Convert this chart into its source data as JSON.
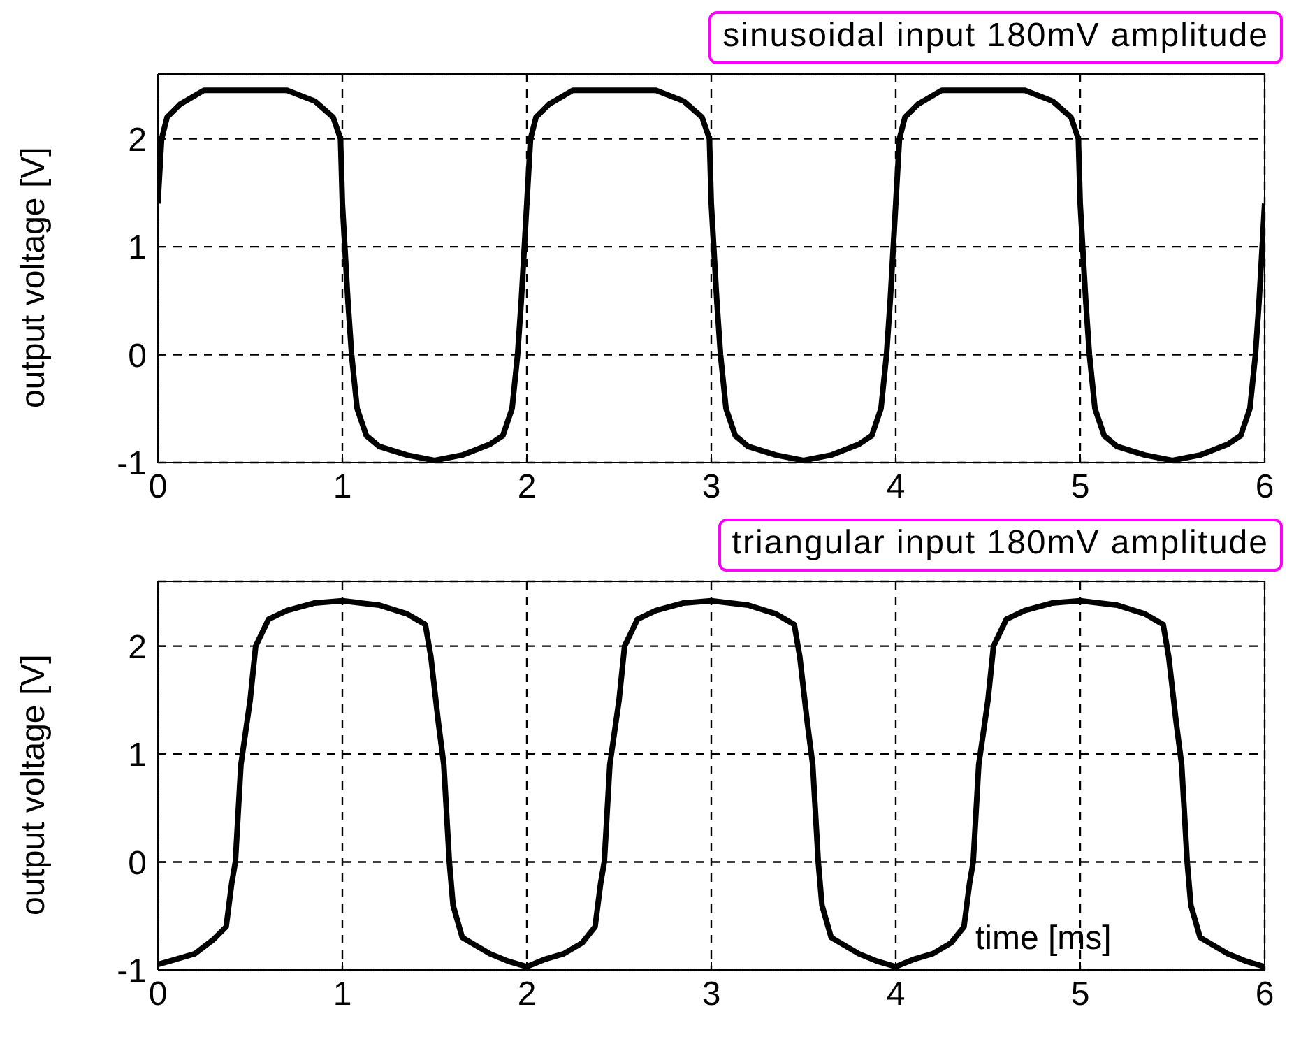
{
  "chart_data": [
    {
      "type": "line",
      "title": "sinusoidal input 180mV amplitude",
      "ylabel": "output voltage [V]",
      "x": [
        0,
        0.02,
        0.05,
        0.12,
        0.25,
        0.7,
        0.85,
        0.95,
        0.99,
        1.0,
        1.03,
        1.05,
        1.08,
        1.13,
        1.2,
        1.35,
        1.5,
        1.65,
        1.8,
        1.87,
        1.92,
        1.95,
        1.97,
        2.0,
        2.02,
        2.05,
        2.12,
        2.25,
        2.7,
        2.85,
        2.95,
        2.99,
        3.0,
        3.03,
        3.05,
        3.08,
        3.13,
        3.2,
        3.35,
        3.5,
        3.65,
        3.8,
        3.87,
        3.92,
        3.95,
        3.97,
        4.0,
        4.02,
        4.05,
        4.12,
        4.25,
        4.7,
        4.85,
        4.95,
        4.99,
        5.0,
        5.03,
        5.05,
        5.08,
        5.13,
        5.2,
        5.35,
        5.5,
        5.65,
        5.8,
        5.87,
        5.92,
        5.95,
        5.97,
        6.0
      ],
      "series": [
        {
          "color": "#000000",
          "values": [
            1.4,
            2.0,
            2.2,
            2.32,
            2.45,
            2.45,
            2.35,
            2.2,
            2.0,
            1.4,
            0.5,
            0,
            -0.5,
            -0.75,
            -0.85,
            -0.93,
            -0.98,
            -0.93,
            -0.83,
            -0.75,
            -0.5,
            0,
            0.5,
            1.4,
            2.0,
            2.2,
            2.32,
            2.45,
            2.45,
            2.35,
            2.2,
            2.0,
            1.4,
            0.5,
            0,
            -0.5,
            -0.75,
            -0.85,
            -0.93,
            -0.98,
            -0.93,
            -0.83,
            -0.75,
            -0.5,
            0,
            0.5,
            1.4,
            2.0,
            2.2,
            2.32,
            2.45,
            2.45,
            2.35,
            2.2,
            2.0,
            1.4,
            0.5,
            0,
            -0.5,
            -0.75,
            -0.85,
            -0.93,
            -0.98,
            -0.93,
            -0.83,
            -0.75,
            -0.5,
            0,
            0.5,
            1.4
          ]
        }
      ],
      "xlim": [
        0,
        6
      ],
      "xticks": [
        0,
        1,
        2,
        3,
        4,
        5,
        6
      ],
      "ylim": [
        -1,
        2.6
      ],
      "yticks": [
        -1,
        0,
        1,
        2
      ],
      "grid": true
    },
    {
      "type": "line",
      "title": "triangular input 180mV amplitude",
      "ylabel": "output voltage [V]",
      "annotations": [
        "time [ms]"
      ],
      "x": [
        0,
        0.1,
        0.2,
        0.3,
        0.37,
        0.4,
        0.42,
        0.45,
        0.5,
        0.53,
        0.6,
        0.7,
        0.85,
        1.0,
        1.2,
        1.35,
        1.45,
        1.48,
        1.52,
        1.55,
        1.58,
        1.6,
        1.65,
        1.8,
        1.9,
        2.0,
        2.1,
        2.2,
        2.3,
        2.37,
        2.4,
        2.42,
        2.45,
        2.5,
        2.53,
        2.6,
        2.7,
        2.85,
        3.0,
        3.2,
        3.35,
        3.45,
        3.48,
        3.52,
        3.55,
        3.58,
        3.6,
        3.65,
        3.8,
        3.9,
        4.0,
        4.1,
        4.2,
        4.3,
        4.37,
        4.4,
        4.42,
        4.45,
        4.5,
        4.53,
        4.6,
        4.7,
        4.85,
        5.0,
        5.2,
        5.35,
        5.45,
        5.48,
        5.52,
        5.55,
        5.58,
        5.6,
        5.65,
        5.8,
        5.9,
        6.0
      ],
      "series": [
        {
          "color": "#000000",
          "values": [
            -0.95,
            -0.9,
            -0.85,
            -0.72,
            -0.6,
            -0.2,
            0,
            0.9,
            1.5,
            2.0,
            2.25,
            2.33,
            2.4,
            2.42,
            2.38,
            2.3,
            2.2,
            1.9,
            1.3,
            0.9,
            0,
            -0.4,
            -0.7,
            -0.85,
            -0.92,
            -0.97,
            -0.9,
            -0.85,
            -0.75,
            -0.6,
            -0.2,
            0,
            0.9,
            1.5,
            2.0,
            2.25,
            2.33,
            2.4,
            2.42,
            2.38,
            2.3,
            2.2,
            1.9,
            1.3,
            0.9,
            0,
            -0.4,
            -0.7,
            -0.85,
            -0.92,
            -0.97,
            -0.9,
            -0.85,
            -0.75,
            -0.6,
            -0.2,
            0,
            0.9,
            1.5,
            2.0,
            2.25,
            2.33,
            2.4,
            2.42,
            2.38,
            2.3,
            2.2,
            1.9,
            1.3,
            0.9,
            0,
            -0.4,
            -0.7,
            -0.85,
            -0.92,
            -0.97
          ]
        }
      ],
      "xlim": [
        0,
        6
      ],
      "xticks": [
        0,
        1,
        2,
        3,
        4,
        5,
        6
      ],
      "ylim": [
        -1,
        2.6
      ],
      "yticks": [
        -1,
        0,
        1,
        2
      ],
      "grid": true
    }
  ]
}
